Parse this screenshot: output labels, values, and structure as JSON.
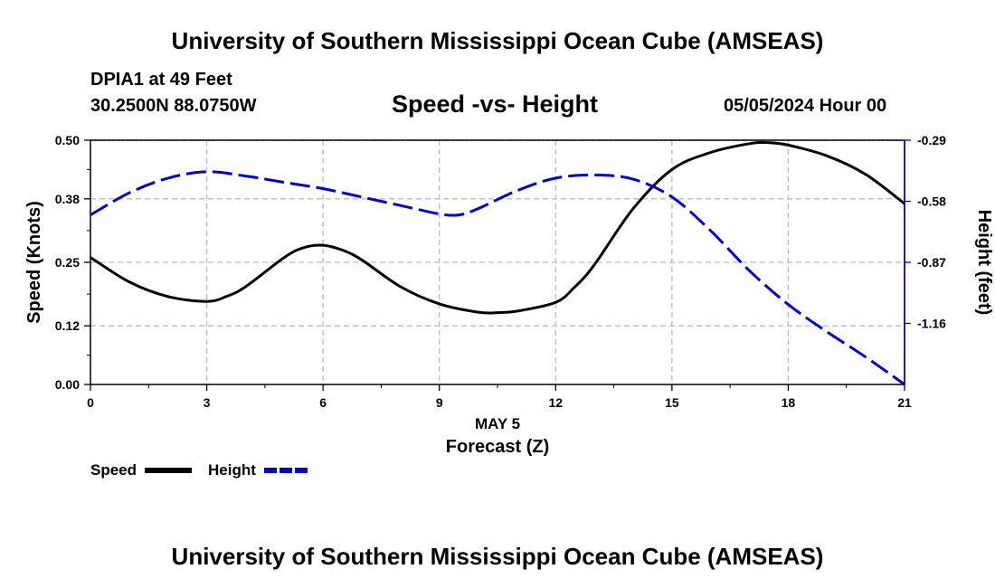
{
  "header": {
    "title": "University of Southern Mississippi Ocean Cube (AMSEAS)",
    "station": "DPIA1 at 49 Feet",
    "coords": "30.2500N  88.0750W",
    "subtitle": "Speed -vs- Height",
    "datetime": "05/05/2024 Hour 00"
  },
  "footer": {
    "title": "University of Southern Mississippi Ocean Cube (AMSEAS)"
  },
  "chart_data": {
    "type": "line",
    "title": "Speed -vs- Height",
    "xlabel_top": "MAY 5",
    "xlabel": "Forecast (Z)",
    "ylabel": "Speed (Knots)",
    "y2label": "Height (feet)",
    "xlim": [
      0,
      21
    ],
    "ylim": [
      0,
      0.5
    ],
    "y2lim": [
      -1.45,
      -0.29
    ],
    "x_ticks": [
      "0",
      "3",
      "6",
      "9",
      "12",
      "15",
      "18",
      "21"
    ],
    "y_ticks": [
      "0.00",
      "0.12",
      "0.25",
      "0.38",
      "0.50"
    ],
    "y2_ticks": [
      "-0.29",
      "-0.58",
      "-0.87",
      "-1.16"
    ],
    "grid": true,
    "series": [
      {
        "name": "Speed",
        "axis": "left",
        "color": "#000000",
        "style": "solid",
        "x": [
          0,
          1,
          2,
          3,
          3.5,
          4,
          5,
          5.5,
          6,
          6.5,
          7,
          8,
          9,
          10,
          10.5,
          11,
          12,
          12.5,
          13,
          14,
          15,
          16,
          17,
          17.5,
          18,
          19,
          20,
          21
        ],
        "values": [
          0.26,
          0.21,
          0.18,
          0.17,
          0.18,
          0.2,
          0.26,
          0.28,
          0.285,
          0.275,
          0.255,
          0.2,
          0.165,
          0.148,
          0.147,
          0.15,
          0.168,
          0.2,
          0.245,
          0.36,
          0.44,
          0.475,
          0.493,
          0.495,
          0.49,
          0.468,
          0.43,
          0.37
        ]
      },
      {
        "name": "Height",
        "axis": "right",
        "color": "#0000cc",
        "style": "dashed",
        "x": [
          0,
          1,
          2,
          3,
          4,
          5,
          6,
          7,
          8,
          9,
          9.5,
          10,
          11,
          12,
          13,
          14,
          15,
          16,
          17,
          18,
          19,
          20,
          21
        ],
        "values": [
          -0.645,
          -0.54,
          -0.47,
          -0.44,
          -0.46,
          -0.49,
          -0.52,
          -0.56,
          -0.6,
          -0.64,
          -0.645,
          -0.615,
          -0.53,
          -0.47,
          -0.455,
          -0.475,
          -0.56,
          -0.72,
          -0.91,
          -1.07,
          -1.2,
          -1.32,
          -1.45
        ]
      }
    ],
    "legend": {
      "placement": "bottom-left",
      "entries": [
        "Speed",
        "Height"
      ]
    }
  }
}
